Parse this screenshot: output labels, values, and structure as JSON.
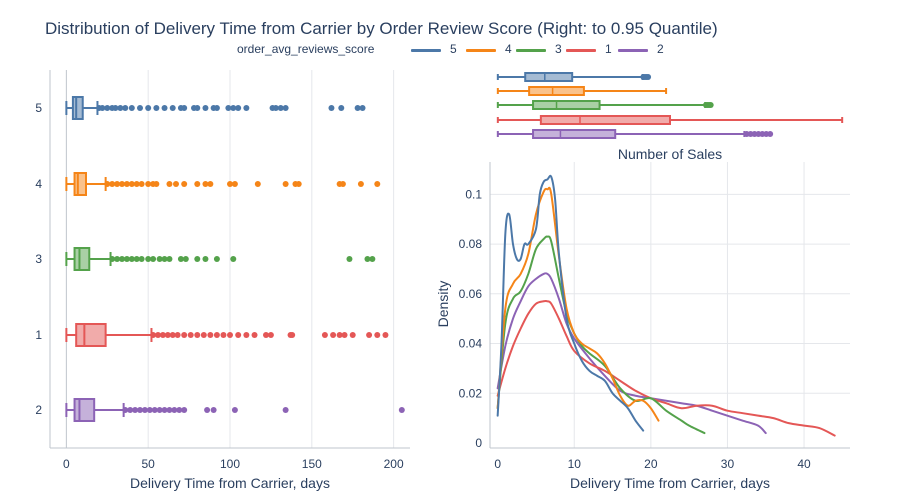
{
  "title": "Distribution of Delivery Time from Carrier by Order Review Score (Right: to 0.95 Quantile)",
  "legend": {
    "title": "order_avg_reviews_score",
    "items": [
      {
        "label": "5",
        "color": "#4c78a8"
      },
      {
        "label": "4",
        "color": "#f58518"
      },
      {
        "label": "3",
        "color": "#54a24b"
      },
      {
        "label": "1",
        "color": "#e45756"
      },
      {
        "label": "2",
        "color": "#8c63b5"
      }
    ]
  },
  "chart_data": [
    {
      "type": "box",
      "orientation": "horizontal",
      "title": "",
      "xlabel": "Delivery Time from Carrier, days",
      "ylabel": "",
      "xlim": [
        -10,
        210
      ],
      "xticks": [
        0,
        50,
        100,
        150,
        200
      ],
      "categories": [
        "5",
        "4",
        "3",
        "1",
        "2"
      ],
      "series": [
        {
          "name": "5",
          "color": "#4c78a8",
          "min": 0,
          "q1": 4,
          "median": 6,
          "q3": 10,
          "max": 19,
          "outliers": [
            20,
            22,
            25,
            28,
            30,
            33,
            36,
            40,
            45,
            50,
            55,
            60,
            65,
            70,
            72,
            78,
            80,
            85,
            90,
            92,
            99,
            102,
            105,
            110,
            126,
            128,
            131,
            134,
            162,
            168,
            178,
            181
          ]
        },
        {
          "name": "4",
          "color": "#f58518",
          "min": 0,
          "q1": 5,
          "median": 7,
          "q3": 12,
          "max": 24,
          "outliers": [
            25,
            28,
            31,
            34,
            37,
            40,
            43,
            46,
            50,
            53,
            55,
            63,
            67,
            72,
            80,
            85,
            88,
            100,
            103,
            117,
            134,
            140,
            142,
            167,
            169,
            180,
            190
          ]
        },
        {
          "name": "3",
          "color": "#54a24b",
          "min": 0,
          "q1": 5,
          "median": 8,
          "q3": 14,
          "max": 27,
          "outliers": [
            28,
            31,
            34,
            37,
            40,
            43,
            46,
            50,
            53,
            57,
            60,
            63,
            70,
            73,
            80,
            85,
            92,
            102,
            173,
            184,
            187
          ]
        },
        {
          "name": "1",
          "color": "#e45756",
          "min": 0,
          "q1": 6,
          "median": 11,
          "q3": 24,
          "max": 52,
          "outliers": [
            53,
            56,
            59,
            62,
            65,
            68,
            72,
            76,
            80,
            84,
            88,
            92,
            96,
            100,
            105,
            110,
            115,
            122,
            125,
            137,
            138,
            158,
            163,
            167,
            170,
            175,
            185,
            190,
            195
          ]
        },
        {
          "name": "2",
          "color": "#8c63b5",
          "min": 0,
          "q1": 5,
          "median": 8,
          "q3": 17,
          "max": 35,
          "outliers": [
            36,
            39,
            42,
            45,
            48,
            51,
            54,
            57,
            60,
            63,
            66,
            69,
            72,
            86,
            90,
            103,
            134,
            205
          ]
        }
      ]
    },
    {
      "type": "box",
      "orientation": "horizontal",
      "title": "",
      "xlabel": "",
      "ylabel": "",
      "xlim": [
        -1,
        45
      ],
      "categories": [
        "5",
        "4",
        "3",
        "1",
        "2"
      ],
      "series": [
        {
          "name": "5",
          "color": "#4c78a8",
          "min": 0,
          "q1": 3.5,
          "median": 6,
          "q3": 9.5,
          "max": 18.5,
          "outliers": [
            18.6,
            18.8,
            19.0,
            19.2
          ]
        },
        {
          "name": "4",
          "color": "#f58518",
          "min": 0,
          "q1": 4,
          "median": 7,
          "q3": 11,
          "max": 21.5,
          "outliers": []
        },
        {
          "name": "3",
          "color": "#54a24b",
          "min": 0,
          "q1": 4.5,
          "median": 7.5,
          "q3": 13,
          "max": 26.5,
          "outliers": [
            26.6,
            26.8,
            27.0,
            27.2
          ]
        },
        {
          "name": "1",
          "color": "#e45756",
          "min": 0,
          "q1": 5.5,
          "median": 10.5,
          "q3": 22,
          "max": 44,
          "outliers": []
        },
        {
          "name": "2",
          "color": "#8c63b5",
          "min": 0,
          "q1": 4.5,
          "median": 8,
          "q3": 15,
          "max": 31.5,
          "outliers": [
            31.8,
            32.3,
            32.8,
            33.3,
            33.8,
            34.3,
            34.8
          ]
        }
      ]
    },
    {
      "type": "line",
      "title": "Number of Sales",
      "xlabel": "Delivery Time from Carrier, days",
      "ylabel": "Density",
      "xlim": [
        -1,
        46
      ],
      "ylim": [
        -0.002,
        0.113
      ],
      "xticks": [
        0,
        10,
        20,
        30,
        40
      ],
      "yticks": [
        0,
        0.02,
        0.04,
        0.06,
        0.08,
        0.1
      ],
      "series": [
        {
          "name": "5",
          "color": "#4c78a8",
          "x": [
            0,
            0.5,
            1,
            1.5,
            2,
            2.5,
            3,
            3.5,
            4,
            5,
            5.5,
            6,
            6.5,
            7,
            7.5,
            8,
            9,
            10,
            11,
            12,
            13,
            14,
            15,
            16,
            17,
            18,
            19
          ],
          "y": [
            0.011,
            0.04,
            0.084,
            0.092,
            0.08,
            0.074,
            0.074,
            0.08,
            0.08,
            0.086,
            0.1,
            0.105,
            0.106,
            0.107,
            0.098,
            0.076,
            0.05,
            0.04,
            0.033,
            0.029,
            0.027,
            0.025,
            0.02,
            0.017,
            0.014,
            0.009,
            0.005
          ]
        },
        {
          "name": "4",
          "color": "#f58518",
          "x": [
            0,
            1,
            2,
            3,
            4,
            5,
            6,
            6.5,
            7,
            8,
            9,
            10,
            11,
            12,
            13,
            14,
            15,
            16,
            17,
            18,
            19,
            20,
            21
          ],
          "y": [
            0.014,
            0.054,
            0.064,
            0.068,
            0.076,
            0.092,
            0.101,
            0.102,
            0.1,
            0.075,
            0.054,
            0.044,
            0.04,
            0.038,
            0.036,
            0.032,
            0.026,
            0.019,
            0.015,
            0.017,
            0.017,
            0.014,
            0.009
          ]
        },
        {
          "name": "3",
          "color": "#54a24b",
          "x": [
            0,
            1,
            2,
            3,
            4,
            5,
            6,
            6.5,
            7,
            8,
            9,
            10,
            11,
            12,
            14,
            16,
            18,
            20,
            22,
            24,
            25,
            27
          ],
          "y": [
            0.014,
            0.048,
            0.058,
            0.061,
            0.068,
            0.078,
            0.082,
            0.083,
            0.081,
            0.066,
            0.052,
            0.044,
            0.039,
            0.036,
            0.031,
            0.022,
            0.017,
            0.018,
            0.013,
            0.009,
            0.007,
            0.004
          ]
        },
        {
          "name": "1",
          "color": "#e45756",
          "x": [
            0,
            1,
            2,
            3,
            4,
            5,
            6,
            6.5,
            7,
            8,
            9,
            10,
            12,
            14,
            16,
            18,
            20,
            22,
            24,
            26,
            28,
            30,
            32,
            34,
            36,
            38,
            40,
            42,
            44
          ],
          "y": [
            0.019,
            0.03,
            0.039,
            0.046,
            0.052,
            0.056,
            0.057,
            0.057,
            0.056,
            0.05,
            0.043,
            0.037,
            0.032,
            0.029,
            0.025,
            0.021,
            0.018,
            0.016,
            0.014,
            0.015,
            0.015,
            0.013,
            0.012,
            0.011,
            0.01,
            0.008,
            0.007,
            0.006,
            0.003
          ]
        },
        {
          "name": "2",
          "color": "#8c63b5",
          "x": [
            0,
            1,
            2,
            3,
            4,
            5,
            6,
            6.5,
            7,
            8,
            9,
            10,
            12,
            14,
            16,
            18,
            20,
            22,
            24,
            26,
            28,
            30,
            32,
            34,
            35
          ],
          "y": [
            0.022,
            0.039,
            0.05,
            0.057,
            0.063,
            0.066,
            0.068,
            0.068,
            0.066,
            0.058,
            0.048,
            0.042,
            0.034,
            0.027,
            0.021,
            0.019,
            0.018,
            0.017,
            0.016,
            0.015,
            0.013,
            0.011,
            0.009,
            0.007,
            0.004
          ]
        }
      ]
    }
  ]
}
